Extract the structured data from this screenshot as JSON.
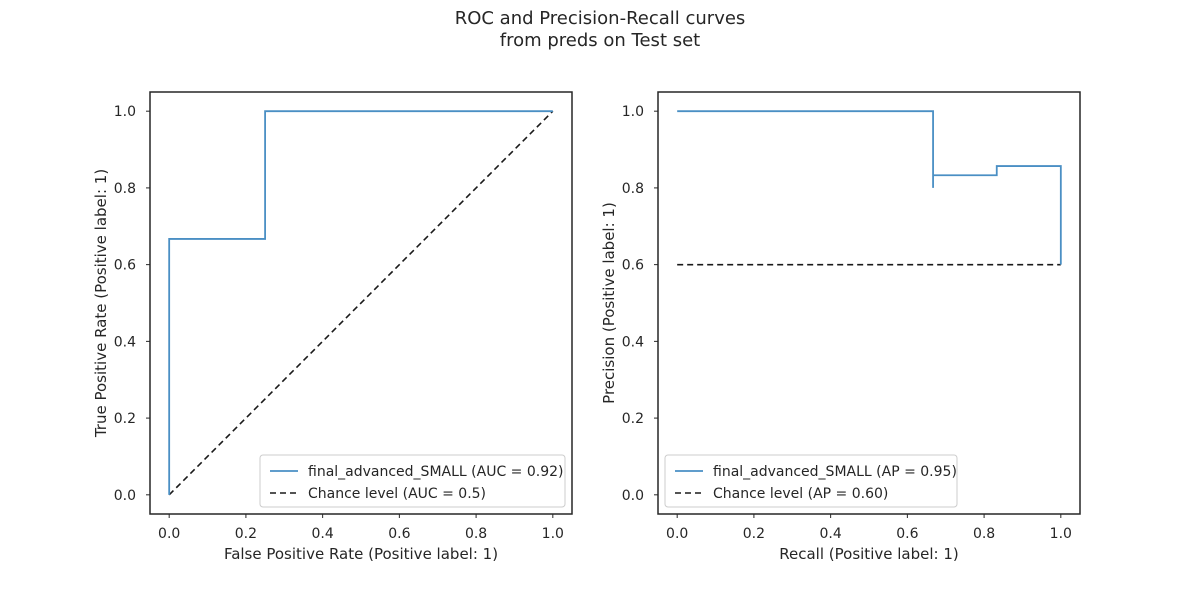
{
  "figure": {
    "title_line1": "ROC and Precision-Recall curves",
    "title_line2": "from preds on Test set"
  },
  "colors": {
    "curve": "#4a8fc4",
    "chance": "#1a1a1a",
    "axes": "#262626"
  },
  "chart_data": [
    {
      "type": "line",
      "xlabel": "False Positive Rate (Positive label: 1)",
      "ylabel": "True Positive Rate (Positive label: 1)",
      "xlim": [
        -0.05,
        1.05
      ],
      "ylim": [
        -0.05,
        1.05
      ],
      "xticks": [
        "0.0",
        "0.2",
        "0.4",
        "0.6",
        "0.8",
        "1.0"
      ],
      "yticks": [
        "0.0",
        "0.2",
        "0.4",
        "0.6",
        "0.8",
        "1.0"
      ],
      "grid": false,
      "legend_position": "lower-right",
      "series": [
        {
          "name": "final_advanced_SMALL (AUC = 0.92)",
          "style": "solid",
          "points": [
            [
              0.0,
              0.0
            ],
            [
              0.0,
              0.667
            ],
            [
              0.25,
              0.667
            ],
            [
              0.25,
              1.0
            ],
            [
              1.0,
              1.0
            ]
          ]
        },
        {
          "name": "Chance level (AUC = 0.5)",
          "style": "dashed",
          "points": [
            [
              0.0,
              0.0
            ],
            [
              1.0,
              1.0
            ]
          ]
        }
      ]
    },
    {
      "type": "line",
      "xlabel": "Recall (Positive label: 1)",
      "ylabel": "Precision (Positive label: 1)",
      "xlim": [
        -0.05,
        1.05
      ],
      "ylim": [
        -0.05,
        1.05
      ],
      "xticks": [
        "0.0",
        "0.2",
        "0.4",
        "0.6",
        "0.8",
        "1.0"
      ],
      "yticks": [
        "0.0",
        "0.2",
        "0.4",
        "0.6",
        "0.8",
        "1.0"
      ],
      "grid": false,
      "legend_position": "lower-left",
      "series": [
        {
          "name": "final_advanced_SMALL (AP = 0.95)",
          "style": "solid",
          "points": [
            [
              0.0,
              1.0
            ],
            [
              0.667,
              1.0
            ],
            [
              0.667,
              0.8
            ],
            [
              0.667,
              0.833
            ],
            [
              0.833,
              0.833
            ],
            [
              0.833,
              0.857
            ],
            [
              1.0,
              0.857
            ],
            [
              1.0,
              0.6
            ]
          ]
        },
        {
          "name": "Chance level (AP = 0.60)",
          "style": "dashed",
          "points": [
            [
              0.0,
              0.6
            ],
            [
              1.0,
              0.6
            ]
          ]
        }
      ]
    }
  ]
}
